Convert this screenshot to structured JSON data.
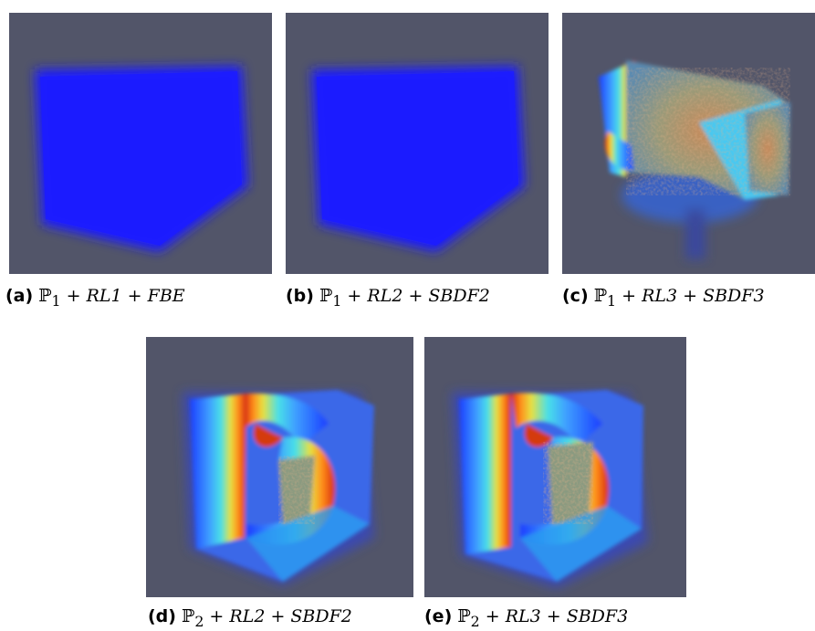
{
  "figures": [
    {
      "tag": "(a)",
      "space": "ℙ",
      "sub": "1",
      "rl": "RL1",
      "scheme": "FBE"
    },
    {
      "tag": "(b)",
      "space": "ℙ",
      "sub": "1",
      "rl": "RL2",
      "scheme": "SBDF2"
    },
    {
      "tag": "(c)",
      "space": "ℙ",
      "sub": "1",
      "rl": "RL3",
      "scheme": "SBDF3"
    },
    {
      "tag": "(d)",
      "space": "ℙ",
      "sub": "2",
      "rl": "RL2",
      "scheme": "SBDF2"
    },
    {
      "tag": "(e)",
      "space": "ℙ",
      "sub": "2",
      "rl": "RL3",
      "scheme": "SBDF3"
    }
  ],
  "colors": {
    "background": "#525569",
    "cube_blue": "#1a1aff"
  }
}
